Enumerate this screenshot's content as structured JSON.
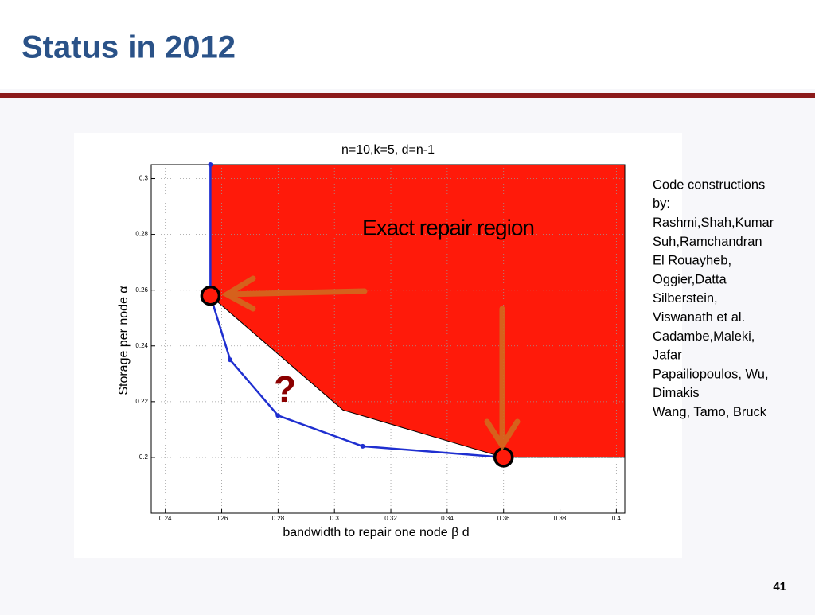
{
  "header": {
    "title": "Status in 2012"
  },
  "notes": [
    "Code constructions",
    "by:",
    "Rashmi,Shah,Kumar",
    "Suh,Ramchandran",
    "El Rouayheb,",
    "Oggier,Datta",
    "Silberstein,",
    "Viswanath et al.",
    "Cadambe,Maleki,",
    "Jafar",
    "Papailiopoulos, Wu,",
    "Dimakis",
    "Wang, Tamo, Bruck"
  ],
  "page_number": "41",
  "chart_data": {
    "type": "line",
    "title": "n=10,k=5, d=n-1",
    "xlabel": "bandwidth to repair one node β d",
    "ylabel": "Storage per node α",
    "xlim": [
      0.235,
      0.403
    ],
    "ylim": [
      0.18,
      0.305
    ],
    "xticks": [
      0.24,
      0.26,
      0.28,
      0.3,
      0.32,
      0.34,
      0.36,
      0.38,
      0.4
    ],
    "yticks": [
      0.2,
      0.22,
      0.24,
      0.26,
      0.28,
      0.3
    ],
    "grid": true,
    "series": [
      {
        "color": "#1f2fd0",
        "x": [
          0.256,
          0.256,
          0.263,
          0.28,
          0.31,
          0.36
        ],
        "values": [
          0.305,
          0.258,
          0.235,
          0.215,
          0.204,
          0.2
        ]
      }
    ],
    "region": {
      "color": "#ff1a0a",
      "x": [
        0.256,
        0.256,
        0.303,
        0.36,
        0.403,
        0.403
      ],
      "y": [
        0.305,
        0.258,
        0.217,
        0.2,
        0.2,
        0.305
      ]
    },
    "highlight": {
      "color": "#ff1a0a",
      "x": [
        0.256,
        0.36
      ],
      "y": [
        0.258,
        0.2
      ]
    },
    "annotations": [
      "Exact repair region",
      "?"
    ]
  }
}
